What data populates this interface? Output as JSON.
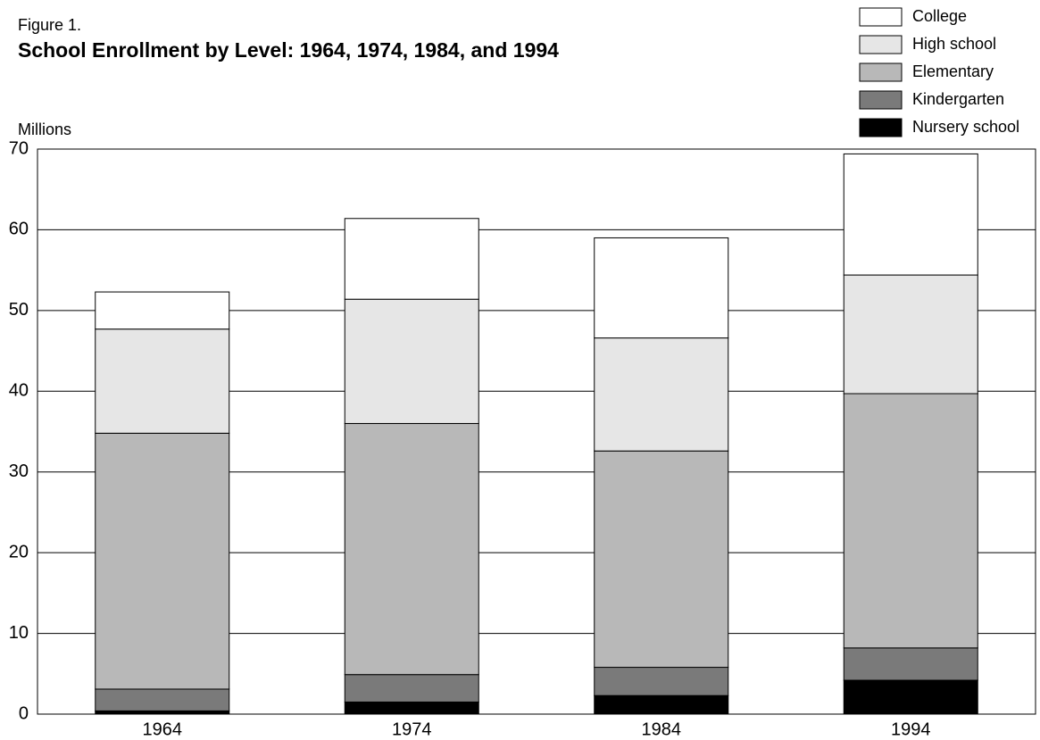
{
  "chart_data": {
    "type": "stacked_bar",
    "figure_label": "Figure 1.",
    "title": "School Enrollment by Level: 1964, 1974, 1984, and 1994",
    "y_label": "Millions",
    "categories": [
      "1964",
      "1974",
      "1984",
      "1994"
    ],
    "series": [
      {
        "name": "Nursery school",
        "color": "#000000",
        "values": [
          0.4,
          1.5,
          2.3,
          4.2
        ]
      },
      {
        "name": "Kindergarten",
        "color": "#7a7a7a",
        "values": [
          2.7,
          3.4,
          3.5,
          4.0
        ]
      },
      {
        "name": "Elementary",
        "color": "#b8b8b8",
        "values": [
          31.7,
          31.1,
          26.8,
          31.5
        ]
      },
      {
        "name": "High school",
        "color": "#e6e6e6",
        "values": [
          12.9,
          15.4,
          14.0,
          14.7
        ]
      },
      {
        "name": "College",
        "color": "#ffffff",
        "values": [
          4.6,
          10.0,
          12.4,
          15.0
        ]
      }
    ],
    "ylim": [
      0,
      70
    ],
    "yticks": [
      0,
      10,
      20,
      30,
      40,
      50,
      60,
      70
    ],
    "grid": true
  }
}
